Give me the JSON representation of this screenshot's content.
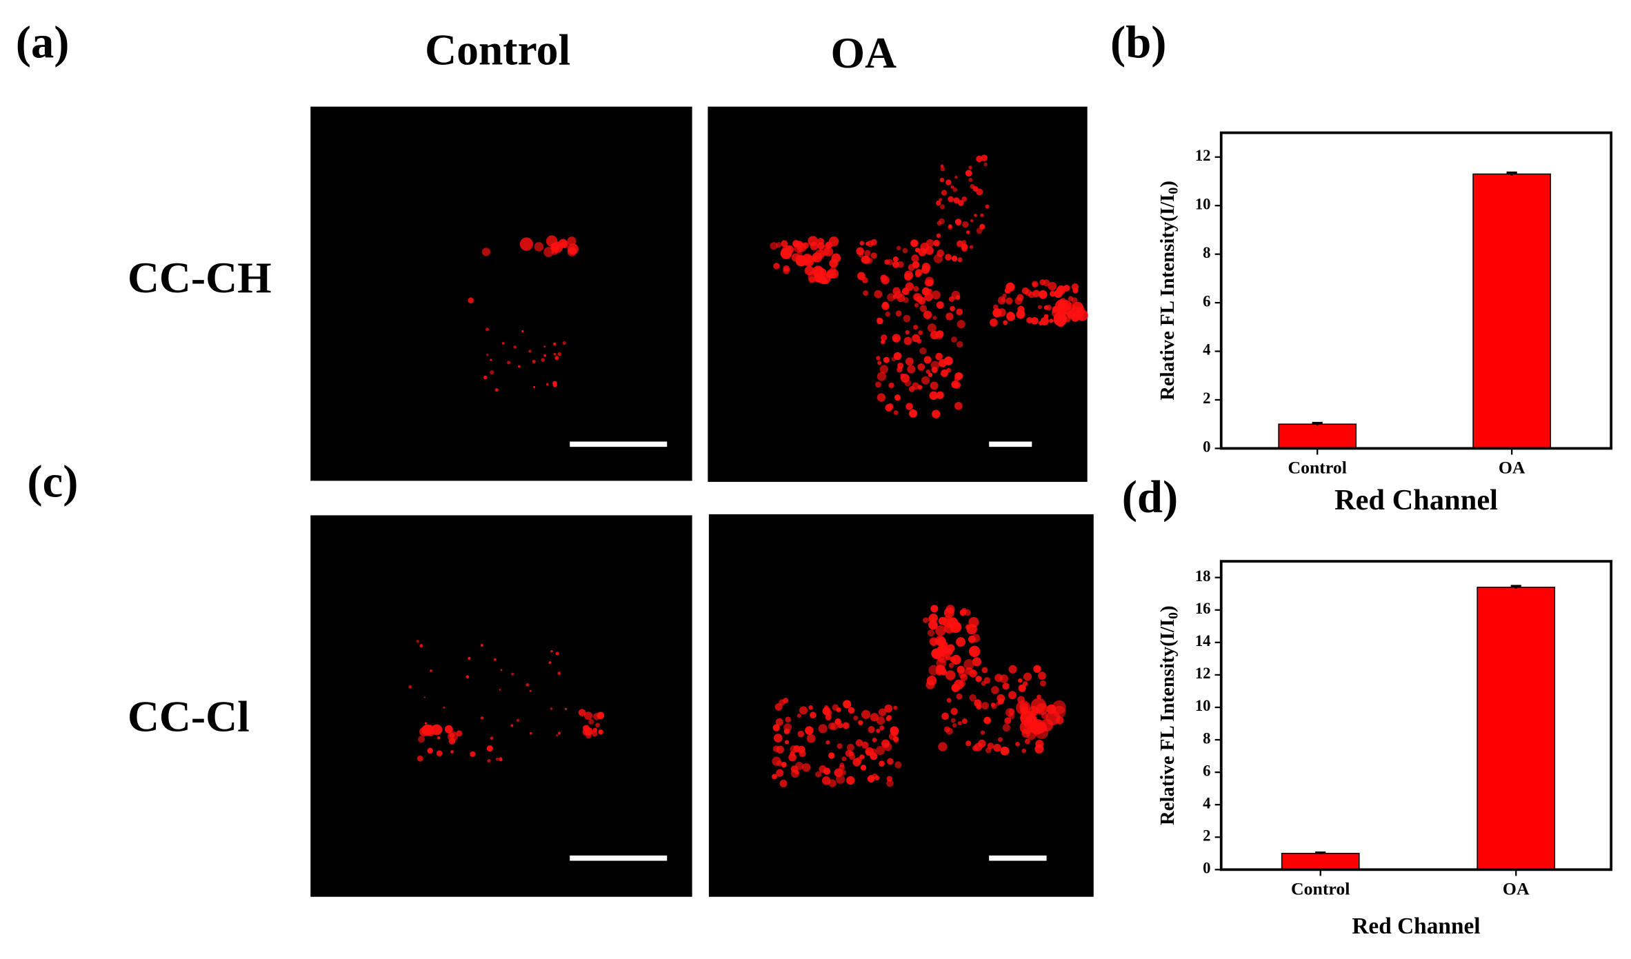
{
  "labels": {
    "panel_a": "(a)",
    "panel_b": "(b)",
    "panel_c": "(c)",
    "panel_d": "(d)",
    "column_control": "Control",
    "column_oa": "OA",
    "row_1": "CC-CH",
    "row_2": "CC-Cl"
  },
  "chart_data": [
    {
      "type": "bar",
      "categories": [
        "Control",
        "OA"
      ],
      "values": [
        1.0,
        11.3
      ],
      "errors": [
        0.05,
        0.06
      ],
      "color": "#ff0000",
      "ylabel": {
        "text": "Relative FL Intensity(I/I",
        "subscript": "0",
        "suffix": ")"
      },
      "xlabel": "Red Channel",
      "ylim": [
        0,
        13
      ],
      "yticks": [
        0,
        2,
        4,
        6,
        8,
        10,
        12
      ]
    },
    {
      "type": "bar",
      "categories": [
        "Control",
        "OA"
      ],
      "values": [
        1.0,
        17.4
      ],
      "errors": [
        0.05,
        0.08
      ],
      "color": "#ff0000",
      "ylabel": {
        "text": "Relative FL Intensity(I/I",
        "subscript": "0",
        "suffix": ")"
      },
      "xlabel": "Red Channel",
      "ylim": [
        0,
        19
      ],
      "yticks": [
        0,
        2,
        4,
        6,
        8,
        10,
        12,
        14,
        16,
        18
      ]
    }
  ]
}
